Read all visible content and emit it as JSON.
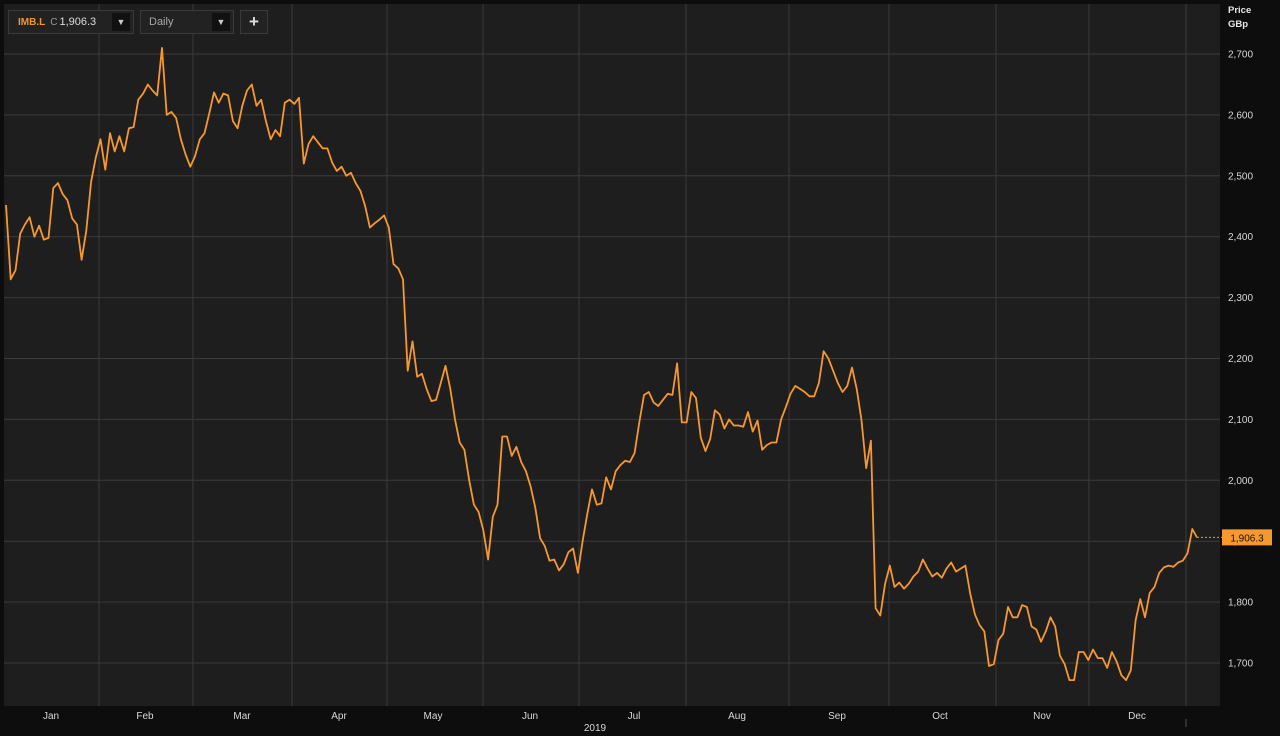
{
  "toolbar": {
    "ticker": "IMB.L",
    "close_prefix": "C",
    "close_value": "1,906.3",
    "period": "Daily",
    "add_glyph": "+",
    "dropdown_glyph": "▼"
  },
  "axis": {
    "price_label": "Price",
    "unit_label": "GBp",
    "year_label": "2019"
  },
  "last_price_label": "1,906.3",
  "colors": {
    "line": "#f7982f",
    "background": "#1e1e1e",
    "grid": "#3a3a3a",
    "badge": "#f7982f"
  },
  "chart_data": {
    "type": "line",
    "title": "",
    "xlabel": "2019",
    "ylabel": "Price GBp",
    "ylim": [
      1620,
      2780
    ],
    "yticks": [
      1700,
      1800,
      1900,
      2000,
      2100,
      2200,
      2300,
      2400,
      2500,
      2600,
      2700
    ],
    "ytick_labels": [
      "1,700",
      "1,800",
      "1,900",
      "2,000",
      "2,100",
      "2,200",
      "2,300",
      "2,400",
      "2,500",
      "2,600",
      "2,700"
    ],
    "month_labels": [
      "Jan",
      "Feb",
      "Mar",
      "Apr",
      "May",
      "Jun",
      "Jul",
      "Aug",
      "Sep",
      "Oct",
      "Nov",
      "Dec"
    ],
    "grid": true,
    "last_value": 1906.3,
    "series": [
      {
        "values": [
          2452,
          2330,
          2345,
          2405,
          2420,
          2432,
          2400,
          2418,
          2395,
          2398,
          2480,
          2488,
          2470,
          2460,
          2430,
          2420,
          2362,
          2410,
          2490,
          2530,
          2560,
          2510,
          2570,
          2540,
          2565,
          2540,
          2578,
          2580,
          2625,
          2635,
          2650,
          2640,
          2632,
          2710,
          2600,
          2605,
          2595,
          2560,
          2535,
          2515,
          2532,
          2560,
          2570,
          2602,
          2637,
          2620,
          2635,
          2632,
          2590,
          2578,
          2615,
          2640,
          2650,
          2615,
          2625,
          2590,
          2560,
          2575,
          2565,
          2620,
          2625,
          2618,
          2628,
          2520,
          2552,
          2565,
          2555,
          2545,
          2545,
          2522,
          2508,
          2515,
          2500,
          2505,
          2488,
          2475,
          2450,
          2415,
          2422,
          2428,
          2435,
          2415,
          2355,
          2348,
          2330,
          2180,
          2228,
          2170,
          2175,
          2150,
          2130,
          2132,
          2160,
          2188,
          2150,
          2100,
          2062,
          2050,
          2000,
          1960,
          1948,
          1918,
          1870,
          1940,
          1960,
          2072,
          2072,
          2040,
          2055,
          2030,
          2015,
          1990,
          1955,
          1905,
          1892,
          1868,
          1870,
          1852,
          1862,
          1882,
          1888,
          1848,
          1900,
          1945,
          1985,
          1960,
          1962,
          2005,
          1985,
          2015,
          2025,
          2032,
          2030,
          2045,
          2095,
          2140,
          2145,
          2128,
          2122,
          2132,
          2142,
          2140,
          2192,
          2095,
          2095,
          2145,
          2135,
          2070,
          2048,
          2068,
          2115,
          2108,
          2085,
          2100,
          2090,
          2090,
          2088,
          2112,
          2080,
          2098,
          2050,
          2058,
          2062,
          2062,
          2100,
          2120,
          2142,
          2155,
          2150,
          2145,
          2138,
          2138,
          2160,
          2212,
          2200,
          2180,
          2160,
          2145,
          2155,
          2185,
          2150,
          2100,
          2020,
          2065,
          1790,
          1778,
          1830,
          1860,
          1825,
          1832,
          1822,
          1830,
          1842,
          1850,
          1870,
          1855,
          1842,
          1848,
          1840,
          1855,
          1865,
          1850,
          1855,
          1860,
          1815,
          1780,
          1762,
          1752,
          1695,
          1698,
          1738,
          1748,
          1792,
          1775,
          1775,
          1795,
          1792,
          1760,
          1755,
          1735,
          1752,
          1775,
          1760,
          1712,
          1698,
          1672,
          1672,
          1718,
          1718,
          1705,
          1722,
          1708,
          1708,
          1692,
          1718,
          1702,
          1680,
          1672,
          1688,
          1770,
          1805,
          1775,
          1815,
          1825,
          1848,
          1857,
          1860,
          1858,
          1865,
          1868,
          1880,
          1920,
          1906
        ]
      }
    ]
  }
}
